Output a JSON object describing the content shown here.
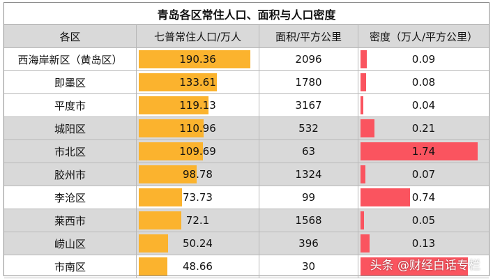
{
  "title": "青岛各区常住人口、面积与人口密度",
  "headers": [
    "各区",
    "七普常住人口/万人",
    "面积/平方公里",
    "密度（万人/平方公里）"
  ],
  "watermark": "头条 @财经白话专栏",
  "colors": {
    "population_bar": "#fbb32e",
    "density_bar": "#fa545f",
    "row_gray": "#d9d9d9"
  },
  "chart_data": {
    "type": "table",
    "title": "青岛各区常住人口、面积与人口密度",
    "columns": [
      "各区",
      "七普常住人口/万人",
      "面积/平方公里",
      "密度（万人/平方公里）"
    ],
    "rows": [
      {
        "district": "西海岸新区（黄岛区）",
        "population": "190.36",
        "area": "2096",
        "density": "0.09",
        "gray": false
      },
      {
        "district": "即墨区",
        "population": "133.61",
        "area": "1780",
        "density": "0.08",
        "gray": false
      },
      {
        "district": "平度市",
        "population": "119.13",
        "area": "3167",
        "density": "0.04",
        "gray": false
      },
      {
        "district": "城阳区",
        "population": "110.96",
        "area": "532",
        "density": "0.21",
        "gray": true
      },
      {
        "district": "市北区",
        "population": "109.69",
        "area": "63",
        "density": "1.74",
        "gray": true
      },
      {
        "district": "胶州市",
        "population": "98.78",
        "area": "1324",
        "density": "0.07",
        "gray": true
      },
      {
        "district": "李沧区",
        "population": "73.73",
        "area": "99",
        "density": "0.74",
        "gray": false
      },
      {
        "district": "莱西市",
        "population": "72.1",
        "area": "1568",
        "density": "0.05",
        "gray": true
      },
      {
        "district": "崂山区",
        "population": "50.24",
        "area": "396",
        "density": "0.13",
        "gray": true
      },
      {
        "district": "市南区",
        "population": "48.66",
        "area": "30",
        "density": "",
        "gray": false
      }
    ],
    "population_max": 190.36,
    "density_max": 1.74,
    "density_bar_市南区": 1.6
  }
}
